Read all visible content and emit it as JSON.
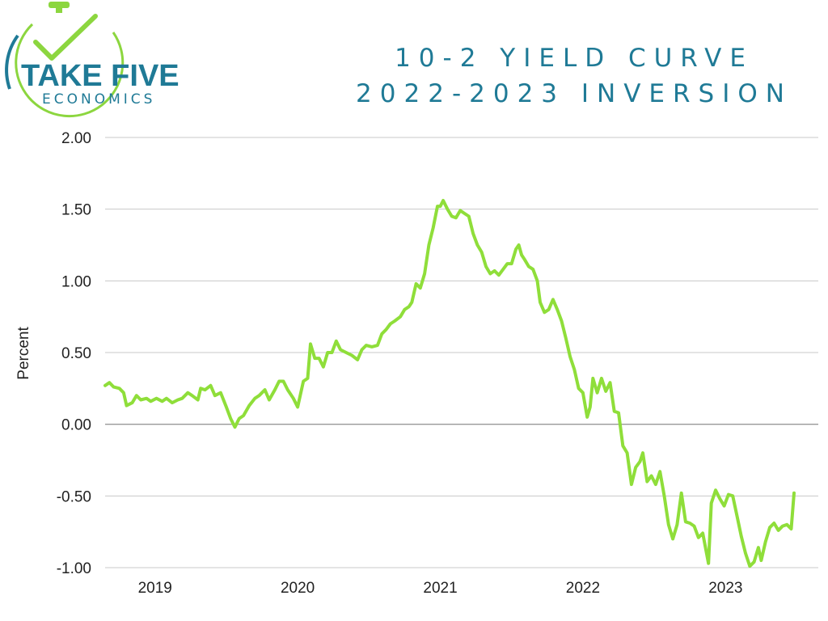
{
  "logo": {
    "name_line1": "TAKE FIVE",
    "name_line2": "ECONOMICS",
    "icon": "stopwatch-check-icon",
    "colors": {
      "green": "#8cd63f",
      "teal": "#1f7a96"
    }
  },
  "colors": {
    "line": "#8fde3a",
    "title": "#1f7a96",
    "grid": "#c8c8c8",
    "zero_line": "#999999"
  },
  "chart_data": {
    "type": "line",
    "title": [
      "10-2 YIELD CURVE",
      "2022-2023 INVERSION"
    ],
    "xlabel": "",
    "ylabel": "Percent",
    "ylim": [
      -1.0,
      2.0
    ],
    "yticks": [
      2.0,
      1.5,
      1.0,
      0.5,
      0.0,
      -0.5,
      -1.0
    ],
    "ytick_labels": [
      "2.00",
      "1.50",
      "1.00",
      "0.50",
      "0.00",
      "-0.50",
      "-1.00"
    ],
    "xlim": [
      2018.85,
      2023.85
    ],
    "xticks": [
      2019.2,
      2020.2,
      2021.2,
      2022.2,
      2023.2
    ],
    "xtick_labels": [
      "2019",
      "2020",
      "2021",
      "2022",
      "2023"
    ],
    "grid": true,
    "legend": "none",
    "series": [
      {
        "values": [
          [
            2018.85,
            0.27
          ],
          [
            2018.88,
            0.29
          ],
          [
            2018.91,
            0.26
          ],
          [
            2018.95,
            0.25
          ],
          [
            2018.98,
            0.22
          ],
          [
            2019.0,
            0.13
          ],
          [
            2019.04,
            0.15
          ],
          [
            2019.07,
            0.2
          ],
          [
            2019.1,
            0.17
          ],
          [
            2019.14,
            0.18
          ],
          [
            2019.17,
            0.16
          ],
          [
            2019.21,
            0.18
          ],
          [
            2019.25,
            0.16
          ],
          [
            2019.28,
            0.18
          ],
          [
            2019.32,
            0.15
          ],
          [
            2019.36,
            0.17
          ],
          [
            2019.39,
            0.18
          ],
          [
            2019.43,
            0.22
          ],
          [
            2019.46,
            0.2
          ],
          [
            2019.5,
            0.17
          ],
          [
            2019.52,
            0.25
          ],
          [
            2019.55,
            0.24
          ],
          [
            2019.59,
            0.27
          ],
          [
            2019.62,
            0.2
          ],
          [
            2019.66,
            0.22
          ],
          [
            2019.7,
            0.12
          ],
          [
            2019.73,
            0.04
          ],
          [
            2019.76,
            -0.02
          ],
          [
            2019.79,
            0.04
          ],
          [
            2019.82,
            0.06
          ],
          [
            2019.86,
            0.13
          ],
          [
            2019.9,
            0.18
          ],
          [
            2019.93,
            0.2
          ],
          [
            2019.97,
            0.24
          ],
          [
            2020.0,
            0.17
          ],
          [
            2020.04,
            0.24
          ],
          [
            2020.07,
            0.3
          ],
          [
            2020.1,
            0.3
          ],
          [
            2020.13,
            0.24
          ],
          [
            2020.17,
            0.18
          ],
          [
            2020.2,
            0.12
          ],
          [
            2020.24,
            0.3
          ],
          [
            2020.27,
            0.32
          ],
          [
            2020.29,
            0.56
          ],
          [
            2020.32,
            0.46
          ],
          [
            2020.35,
            0.46
          ],
          [
            2020.38,
            0.4
          ],
          [
            2020.41,
            0.5
          ],
          [
            2020.44,
            0.5
          ],
          [
            2020.47,
            0.58
          ],
          [
            2020.5,
            0.52
          ],
          [
            2020.54,
            0.5
          ],
          [
            2020.58,
            0.48
          ],
          [
            2020.62,
            0.45
          ],
          [
            2020.65,
            0.52
          ],
          [
            2020.68,
            0.55
          ],
          [
            2020.72,
            0.54
          ],
          [
            2020.76,
            0.55
          ],
          [
            2020.79,
            0.63
          ],
          [
            2020.82,
            0.66
          ],
          [
            2020.85,
            0.7
          ],
          [
            2020.88,
            0.72
          ],
          [
            2020.92,
            0.75
          ],
          [
            2020.95,
            0.8
          ],
          [
            2020.98,
            0.82
          ],
          [
            2021.0,
            0.85
          ],
          [
            2021.03,
            0.98
          ],
          [
            2021.06,
            0.95
          ],
          [
            2021.09,
            1.05
          ],
          [
            2021.12,
            1.25
          ],
          [
            2021.15,
            1.37
          ],
          [
            2021.18,
            1.52
          ],
          [
            2021.2,
            1.52
          ],
          [
            2021.22,
            1.56
          ],
          [
            2021.25,
            1.5
          ],
          [
            2021.28,
            1.45
          ],
          [
            2021.31,
            1.44
          ],
          [
            2021.34,
            1.49
          ],
          [
            2021.37,
            1.47
          ],
          [
            2021.4,
            1.45
          ],
          [
            2021.43,
            1.33
          ],
          [
            2021.46,
            1.25
          ],
          [
            2021.49,
            1.2
          ],
          [
            2021.52,
            1.1
          ],
          [
            2021.55,
            1.05
          ],
          [
            2021.58,
            1.07
          ],
          [
            2021.61,
            1.04
          ],
          [
            2021.64,
            1.08
          ],
          [
            2021.67,
            1.12
          ],
          [
            2021.7,
            1.12
          ],
          [
            2021.73,
            1.22
          ],
          [
            2021.75,
            1.25
          ],
          [
            2021.77,
            1.18
          ],
          [
            2021.79,
            1.15
          ],
          [
            2021.82,
            1.1
          ],
          [
            2021.85,
            1.08
          ],
          [
            2021.88,
            1.0
          ],
          [
            2021.9,
            0.85
          ],
          [
            2021.93,
            0.78
          ],
          [
            2021.96,
            0.8
          ],
          [
            2021.99,
            0.87
          ],
          [
            2022.02,
            0.8
          ],
          [
            2022.05,
            0.72
          ],
          [
            2022.08,
            0.6
          ],
          [
            2022.11,
            0.47
          ],
          [
            2022.14,
            0.38
          ],
          [
            2022.17,
            0.25
          ],
          [
            2022.2,
            0.22
          ],
          [
            2022.23,
            0.05
          ],
          [
            2022.25,
            0.12
          ],
          [
            2022.27,
            0.32
          ],
          [
            2022.3,
            0.22
          ],
          [
            2022.33,
            0.32
          ],
          [
            2022.36,
            0.23
          ],
          [
            2022.39,
            0.29
          ],
          [
            2022.42,
            0.09
          ],
          [
            2022.45,
            0.08
          ],
          [
            2022.48,
            -0.15
          ],
          [
            2022.51,
            -0.2
          ],
          [
            2022.54,
            -0.42
          ],
          [
            2022.57,
            -0.3
          ],
          [
            2022.6,
            -0.26
          ],
          [
            2022.62,
            -0.2
          ],
          [
            2022.65,
            -0.4
          ],
          [
            2022.68,
            -0.36
          ],
          [
            2022.71,
            -0.42
          ],
          [
            2022.74,
            -0.33
          ],
          [
            2022.77,
            -0.5
          ],
          [
            2022.8,
            -0.7
          ],
          [
            2022.83,
            -0.8
          ],
          [
            2022.86,
            -0.7
          ],
          [
            2022.89,
            -0.48
          ],
          [
            2022.92,
            -0.68
          ],
          [
            2022.95,
            -0.69
          ],
          [
            2022.98,
            -0.71
          ],
          [
            2023.01,
            -0.79
          ],
          [
            2023.04,
            -0.76
          ],
          [
            2023.08,
            -0.97
          ],
          [
            2023.1,
            -0.55
          ],
          [
            2023.13,
            -0.46
          ],
          [
            2023.16,
            -0.52
          ],
          [
            2023.19,
            -0.57
          ],
          [
            2023.22,
            -0.49
          ],
          [
            2023.25,
            -0.5
          ],
          [
            2023.28,
            -0.64
          ],
          [
            2023.31,
            -0.78
          ],
          [
            2023.34,
            -0.9
          ],
          [
            2023.37,
            -0.99
          ],
          [
            2023.4,
            -0.96
          ],
          [
            2023.43,
            -0.86
          ],
          [
            2023.45,
            -0.95
          ],
          [
            2023.48,
            -0.82
          ],
          [
            2023.51,
            -0.72
          ],
          [
            2023.54,
            -0.69
          ],
          [
            2023.57,
            -0.74
          ],
          [
            2023.6,
            -0.71
          ],
          [
            2023.63,
            -0.7
          ],
          [
            2023.66,
            -0.73
          ],
          [
            2023.68,
            -0.48
          ]
        ]
      }
    ]
  }
}
